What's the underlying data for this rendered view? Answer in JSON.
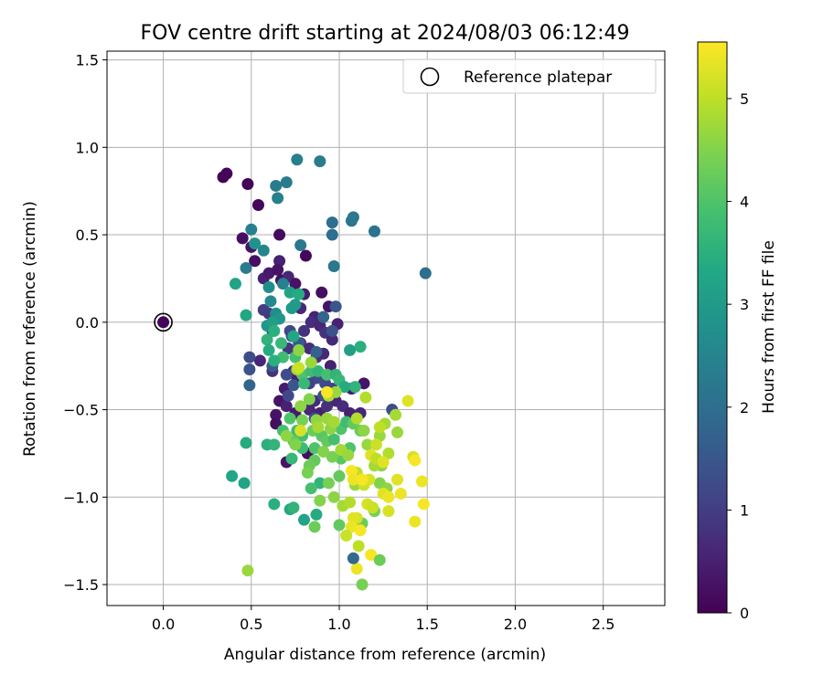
{
  "chart_data": {
    "type": "scatter",
    "title": "FOV centre drift starting at 2024/08/03 06:12:49",
    "xlabel": "Angular distance from reference (arcmin)",
    "ylabel": "Rotation from reference (arcmin)",
    "xlim": [
      -0.32,
      2.85
    ],
    "ylim": [
      -1.62,
      1.55
    ],
    "xticks": [
      "0.0",
      "0.5",
      "1.0",
      "1.5",
      "2.0",
      "2.5"
    ],
    "yticks": [
      "1.5",
      "1.0",
      "0.5",
      "0.0",
      "−0.5",
      "−1.0",
      "−1.5"
    ],
    "grid": true,
    "legend": {
      "location": "top-right",
      "entries": [
        "Reference platepar"
      ]
    },
    "reference_point": {
      "x": 0.0,
      "y": 0.0
    },
    "colorbar": {
      "label": "Hours from first FF file",
      "colormap": "viridis",
      "range": [
        0,
        5.55
      ],
      "ticks": [
        "0",
        "1",
        "2",
        "3",
        "4",
        "5"
      ]
    },
    "columns": [
      "x",
      "y",
      "hours"
    ],
    "points": [
      [
        0.0,
        0.0,
        0.05
      ],
      [
        0.34,
        0.83,
        0.05
      ],
      [
        0.36,
        0.85,
        0.05
      ],
      [
        0.48,
        0.79,
        0.05
      ],
      [
        0.54,
        0.67,
        0.1
      ],
      [
        0.45,
        0.48,
        0.2
      ],
      [
        0.5,
        0.43,
        0.3
      ],
      [
        0.52,
        0.35,
        0.2
      ],
      [
        0.57,
        0.25,
        0.5
      ],
      [
        0.6,
        0.28,
        0.4
      ],
      [
        0.66,
        0.5,
        0.15
      ],
      [
        0.66,
        0.35,
        0.5
      ],
      [
        0.65,
        0.3,
        0.3
      ],
      [
        0.67,
        0.24,
        0.2
      ],
      [
        0.71,
        0.26,
        0.6
      ],
      [
        0.75,
        0.22,
        0.3
      ],
      [
        0.8,
        0.16,
        0.4
      ],
      [
        0.78,
        0.08,
        0.6
      ],
      [
        0.81,
        0.38,
        0.1
      ],
      [
        0.9,
        0.17,
        0.2
      ],
      [
        0.94,
        0.09,
        0.3
      ],
      [
        0.86,
        0.03,
        0.5
      ],
      [
        0.84,
        0.0,
        0.7
      ],
      [
        0.89,
        -0.02,
        0.6
      ],
      [
        0.92,
        -0.06,
        0.8
      ],
      [
        0.96,
        -0.1,
        0.6
      ],
      [
        0.99,
        -0.01,
        0.5
      ],
      [
        0.8,
        -0.05,
        0.8
      ],
      [
        0.78,
        -0.12,
        0.9
      ],
      [
        0.83,
        -0.15,
        0.7
      ],
      [
        0.87,
        -0.2,
        0.8
      ],
      [
        0.91,
        -0.18,
        0.6
      ],
      [
        0.95,
        -0.25,
        0.5
      ],
      [
        0.71,
        -0.15,
        0.9
      ],
      [
        0.74,
        -0.28,
        0.6
      ],
      [
        0.76,
        -0.33,
        0.5
      ],
      [
        0.69,
        -0.38,
        0.4
      ],
      [
        0.66,
        -0.45,
        0.3
      ],
      [
        0.7,
        -0.48,
        0.5
      ],
      [
        0.75,
        -0.52,
        0.4
      ],
      [
        0.64,
        -0.53,
        0.3
      ],
      [
        0.64,
        -0.58,
        0.2
      ],
      [
        0.83,
        -0.5,
        0.6
      ],
      [
        0.86,
        -0.45,
        0.7
      ],
      [
        0.89,
        -0.52,
        0.5
      ],
      [
        0.93,
        -0.48,
        0.8
      ],
      [
        0.98,
        -0.45,
        0.6
      ],
      [
        1.02,
        -0.48,
        0.7
      ],
      [
        1.06,
        -0.52,
        0.5
      ],
      [
        1.12,
        -0.52,
        0.6
      ],
      [
        1.14,
        -0.35,
        0.3
      ],
      [
        1.07,
        -0.38,
        0.4
      ],
      [
        0.82,
        -0.75,
        0.2
      ],
      [
        0.7,
        -0.8,
        0.3
      ],
      [
        0.55,
        -0.22,
        0.6
      ],
      [
        0.62,
        -0.28,
        0.8
      ],
      [
        0.6,
        0.05,
        0.9
      ],
      [
        0.57,
        0.07,
        1.0
      ],
      [
        0.49,
        -0.2,
        1.3
      ],
      [
        0.49,
        -0.27,
        1.4
      ],
      [
        0.49,
        -0.36,
        1.8
      ],
      [
        0.62,
        -0.25,
        1.6
      ],
      [
        0.62,
        -0.05,
        1.5
      ],
      [
        0.73,
        -0.08,
        1.4
      ],
      [
        0.77,
        -0.12,
        1.6
      ],
      [
        0.87,
        -0.17,
        1.7
      ],
      [
        0.91,
        0.03,
        1.8
      ],
      [
        0.98,
        0.09,
        1.5
      ],
      [
        0.96,
        -0.05,
        1.4
      ],
      [
        0.87,
        -0.32,
        1.3
      ],
      [
        0.92,
        -0.35,
        1.2
      ],
      [
        0.96,
        -0.38,
        1.1
      ],
      [
        0.91,
        -0.42,
        1.4
      ],
      [
        0.86,
        -0.55,
        1.3
      ],
      [
        0.83,
        -0.35,
        1.1
      ],
      [
        0.74,
        -0.36,
        1.5
      ],
      [
        0.71,
        -0.42,
        1.2
      ],
      [
        0.7,
        -0.3,
        1.3
      ],
      [
        0.72,
        -0.05,
        1.2
      ],
      [
        1.3,
        -0.5,
        1.3
      ],
      [
        1.49,
        0.28,
        2.0
      ],
      [
        1.2,
        0.52,
        2.1
      ],
      [
        1.07,
        0.58,
        2.1
      ],
      [
        1.08,
        0.6,
        2.2
      ],
      [
        0.96,
        0.57,
        2.0
      ],
      [
        0.96,
        0.5,
        2.0
      ],
      [
        0.97,
        0.32,
        2.2
      ],
      [
        0.89,
        0.92,
        2.3
      ],
      [
        0.76,
        0.93,
        2.4
      ],
      [
        0.7,
        0.8,
        2.3
      ],
      [
        0.64,
        0.78,
        2.3
      ],
      [
        0.65,
        0.71,
        2.4
      ],
      [
        0.78,
        0.44,
        2.2
      ],
      [
        0.57,
        0.41,
        2.5
      ],
      [
        0.5,
        0.53,
        2.4
      ],
      [
        0.52,
        0.45,
        2.8
      ],
      [
        0.47,
        0.31,
        2.3
      ],
      [
        0.68,
        0.22,
        2.4
      ],
      [
        0.6,
        0.2,
        2.7
      ],
      [
        0.61,
        0.12,
        2.6
      ],
      [
        0.64,
        0.05,
        2.7
      ],
      [
        0.59,
        -0.02,
        2.9
      ],
      [
        0.66,
        0.02,
        2.9
      ],
      [
        0.62,
        0.0,
        3.1
      ],
      [
        0.73,
        0.08,
        3.0
      ],
      [
        0.72,
        0.17,
        3.2
      ],
      [
        0.77,
        0.16,
        3.4
      ],
      [
        0.75,
        0.1,
        3.0
      ],
      [
        0.63,
        -0.05,
        3.5
      ],
      [
        0.59,
        -0.1,
        3.6
      ],
      [
        0.6,
        -0.16,
        3.4
      ],
      [
        0.67,
        -0.12,
        3.7
      ],
      [
        0.74,
        -0.08,
        3.3
      ],
      [
        0.68,
        -0.2,
        3.8
      ],
      [
        0.63,
        -0.22,
        3.5
      ],
      [
        0.75,
        -0.2,
        3.9
      ],
      [
        0.79,
        -0.3,
        4.0
      ],
      [
        0.84,
        -0.28,
        3.8
      ],
      [
        0.8,
        -0.35,
        3.7
      ],
      [
        0.88,
        -0.28,
        3.6
      ],
      [
        0.93,
        -0.3,
        3.9
      ],
      [
        0.98,
        -0.3,
        3.6
      ],
      [
        1.0,
        -0.33,
        3.7
      ],
      [
        1.03,
        -0.37,
        3.4
      ],
      [
        1.09,
        -0.37,
        3.6
      ],
      [
        1.12,
        -0.14,
        3.5
      ],
      [
        1.06,
        -0.16,
        3.1
      ],
      [
        0.41,
        0.22,
        3.2
      ],
      [
        0.47,
        0.04,
        3.3
      ],
      [
        0.39,
        -0.88,
        3.3
      ],
      [
        0.46,
        -0.92,
        3.2
      ],
      [
        0.47,
        -0.69,
        3.4
      ],
      [
        0.59,
        -0.7,
        3.5
      ],
      [
        0.63,
        -0.7,
        3.6
      ],
      [
        0.63,
        -1.04,
        3.5
      ],
      [
        0.72,
        -1.07,
        3.3
      ],
      [
        0.8,
        -1.13,
        3.2
      ],
      [
        0.87,
        -1.1,
        3.4
      ],
      [
        0.74,
        -1.06,
        3.6
      ],
      [
        0.73,
        -0.78,
        3.7
      ],
      [
        0.79,
        -0.72,
        3.8
      ],
      [
        0.86,
        -0.72,
        4.0
      ],
      [
        0.89,
        -0.92,
        3.6
      ],
      [
        0.84,
        -0.95,
        3.9
      ],
      [
        0.79,
        -0.65,
        3.9
      ],
      [
        0.76,
        -0.62,
        3.8
      ],
      [
        0.72,
        -0.55,
        4.0
      ],
      [
        0.68,
        -0.62,
        3.9
      ],
      [
        0.74,
        -0.68,
        4.2
      ],
      [
        0.85,
        -0.62,
        4.3
      ],
      [
        0.9,
        -0.65,
        4.1
      ],
      [
        0.93,
        -0.68,
        4.2
      ],
      [
        0.97,
        -0.67,
        3.9
      ],
      [
        1.01,
        -0.61,
        4.0
      ],
      [
        1.04,
        -0.57,
        3.8
      ],
      [
        1.08,
        -0.58,
        4.2
      ],
      [
        1.12,
        -0.62,
        4.3
      ],
      [
        1.06,
        -0.72,
        4.0
      ],
      [
        1.01,
        -0.78,
        4.1
      ],
      [
        1.0,
        -0.88,
        4.2
      ],
      [
        0.94,
        -0.92,
        4.4
      ],
      [
        0.96,
        -0.77,
        4.4
      ],
      [
        0.91,
        -0.74,
        4.5
      ],
      [
        0.86,
        -0.79,
        4.2
      ],
      [
        0.83,
        -0.82,
        4.3
      ],
      [
        0.82,
        -0.86,
        4.4
      ],
      [
        0.89,
        -1.02,
        4.5
      ],
      [
        0.86,
        -1.17,
        4.3
      ],
      [
        0.75,
        -0.7,
        4.5
      ],
      [
        0.79,
        -0.56,
        4.4
      ],
      [
        0.78,
        -0.48,
        4.6
      ],
      [
        0.83,
        -0.44,
        4.5
      ],
      [
        0.87,
        -0.56,
        4.6
      ],
      [
        0.88,
        -0.6,
        4.8
      ],
      [
        0.93,
        -0.55,
        4.7
      ],
      [
        0.95,
        -0.61,
        4.6
      ],
      [
        0.97,
        -0.57,
        4.8
      ],
      [
        0.94,
        -0.42,
        4.9
      ],
      [
        0.98,
        -0.4,
        4.7
      ],
      [
        0.77,
        -0.16,
        4.6
      ],
      [
        0.76,
        -0.27,
        4.8
      ],
      [
        0.84,
        -0.23,
        4.7
      ],
      [
        0.7,
        -0.65,
        4.6
      ],
      [
        1.01,
        -0.73,
        4.8
      ],
      [
        1.05,
        -0.76,
        4.7
      ],
      [
        1.1,
        -0.55,
        4.9
      ],
      [
        1.14,
        -0.62,
        4.6
      ],
      [
        1.16,
        -0.7,
        4.7
      ],
      [
        1.15,
        -0.43,
        4.9
      ],
      [
        1.23,
        -0.65,
        4.7
      ],
      [
        1.26,
        -0.58,
        4.8
      ],
      [
        1.28,
        -0.75,
        4.9
      ],
      [
        1.32,
        -0.53,
        4.8
      ],
      [
        1.33,
        -0.63,
        4.7
      ],
      [
        1.24,
        -0.82,
        4.6
      ],
      [
        1.2,
        -0.82,
        4.8
      ],
      [
        1.23,
        -0.92,
        4.5
      ],
      [
        1.27,
        -0.95,
        4.6
      ],
      [
        1.2,
        -1.08,
        4.4
      ],
      [
        1.13,
        -1.15,
        4.3
      ],
      [
        1.13,
        -1.5,
        4.4
      ],
      [
        1.0,
        -1.16,
        4.2
      ],
      [
        0.97,
        -1.0,
        4.6
      ],
      [
        0.48,
        -1.42,
        4.7
      ],
      [
        1.02,
        -1.05,
        4.8
      ],
      [
        1.06,
        -1.03,
        4.9
      ],
      [
        1.09,
        -0.93,
        4.7
      ],
      [
        1.1,
        -0.86,
        5.0
      ],
      [
        1.14,
        -0.93,
        5.1
      ],
      [
        1.17,
        -0.9,
        5.2
      ],
      [
        1.18,
        -0.76,
        5.3
      ],
      [
        1.21,
        -0.78,
        5.0
      ],
      [
        1.16,
        -1.04,
        5.2
      ],
      [
        1.19,
        -1.06,
        5.1
      ],
      [
        1.25,
        -0.98,
        5.3
      ],
      [
        1.28,
        -1.0,
        5.4
      ],
      [
        1.28,
        -1.08,
        5.2
      ],
      [
        1.33,
        -0.9,
        5.3
      ],
      [
        1.35,
        -0.98,
        5.4
      ],
      [
        1.39,
        -0.45,
        5.3
      ],
      [
        1.42,
        -0.77,
        5.2
      ],
      [
        1.43,
        -0.79,
        5.5
      ],
      [
        1.47,
        -0.91,
        5.4
      ],
      [
        1.48,
        -1.04,
        5.5
      ],
      [
        1.43,
        -1.14,
        5.4
      ],
      [
        1.1,
        -1.12,
        5.2
      ],
      [
        1.08,
        -1.12,
        5.3
      ],
      [
        1.07,
        -1.17,
        5.4
      ],
      [
        1.12,
        -1.19,
        5.5
      ],
      [
        1.04,
        -1.22,
        5.1
      ],
      [
        1.1,
        -1.41,
        5.4
      ],
      [
        1.18,
        -1.33,
        5.5
      ],
      [
        1.07,
        -0.85,
        5.5
      ],
      [
        1.08,
        -0.9,
        5.4
      ],
      [
        0.93,
        -0.4,
        5.5
      ],
      [
        0.78,
        -0.62,
        5.2
      ],
      [
        0.77,
        -0.26,
        5.1
      ],
      [
        1.13,
        -0.9,
        5.5
      ],
      [
        1.25,
        -0.8,
        5.3
      ],
      [
        1.21,
        -0.7,
        5.1
      ],
      [
        1.23,
        -0.6,
        5.0
      ],
      [
        1.11,
        -1.28,
        5.0
      ],
      [
        1.23,
        -1.36,
        4.3
      ],
      [
        1.08,
        -1.35,
        1.9
      ]
    ]
  }
}
